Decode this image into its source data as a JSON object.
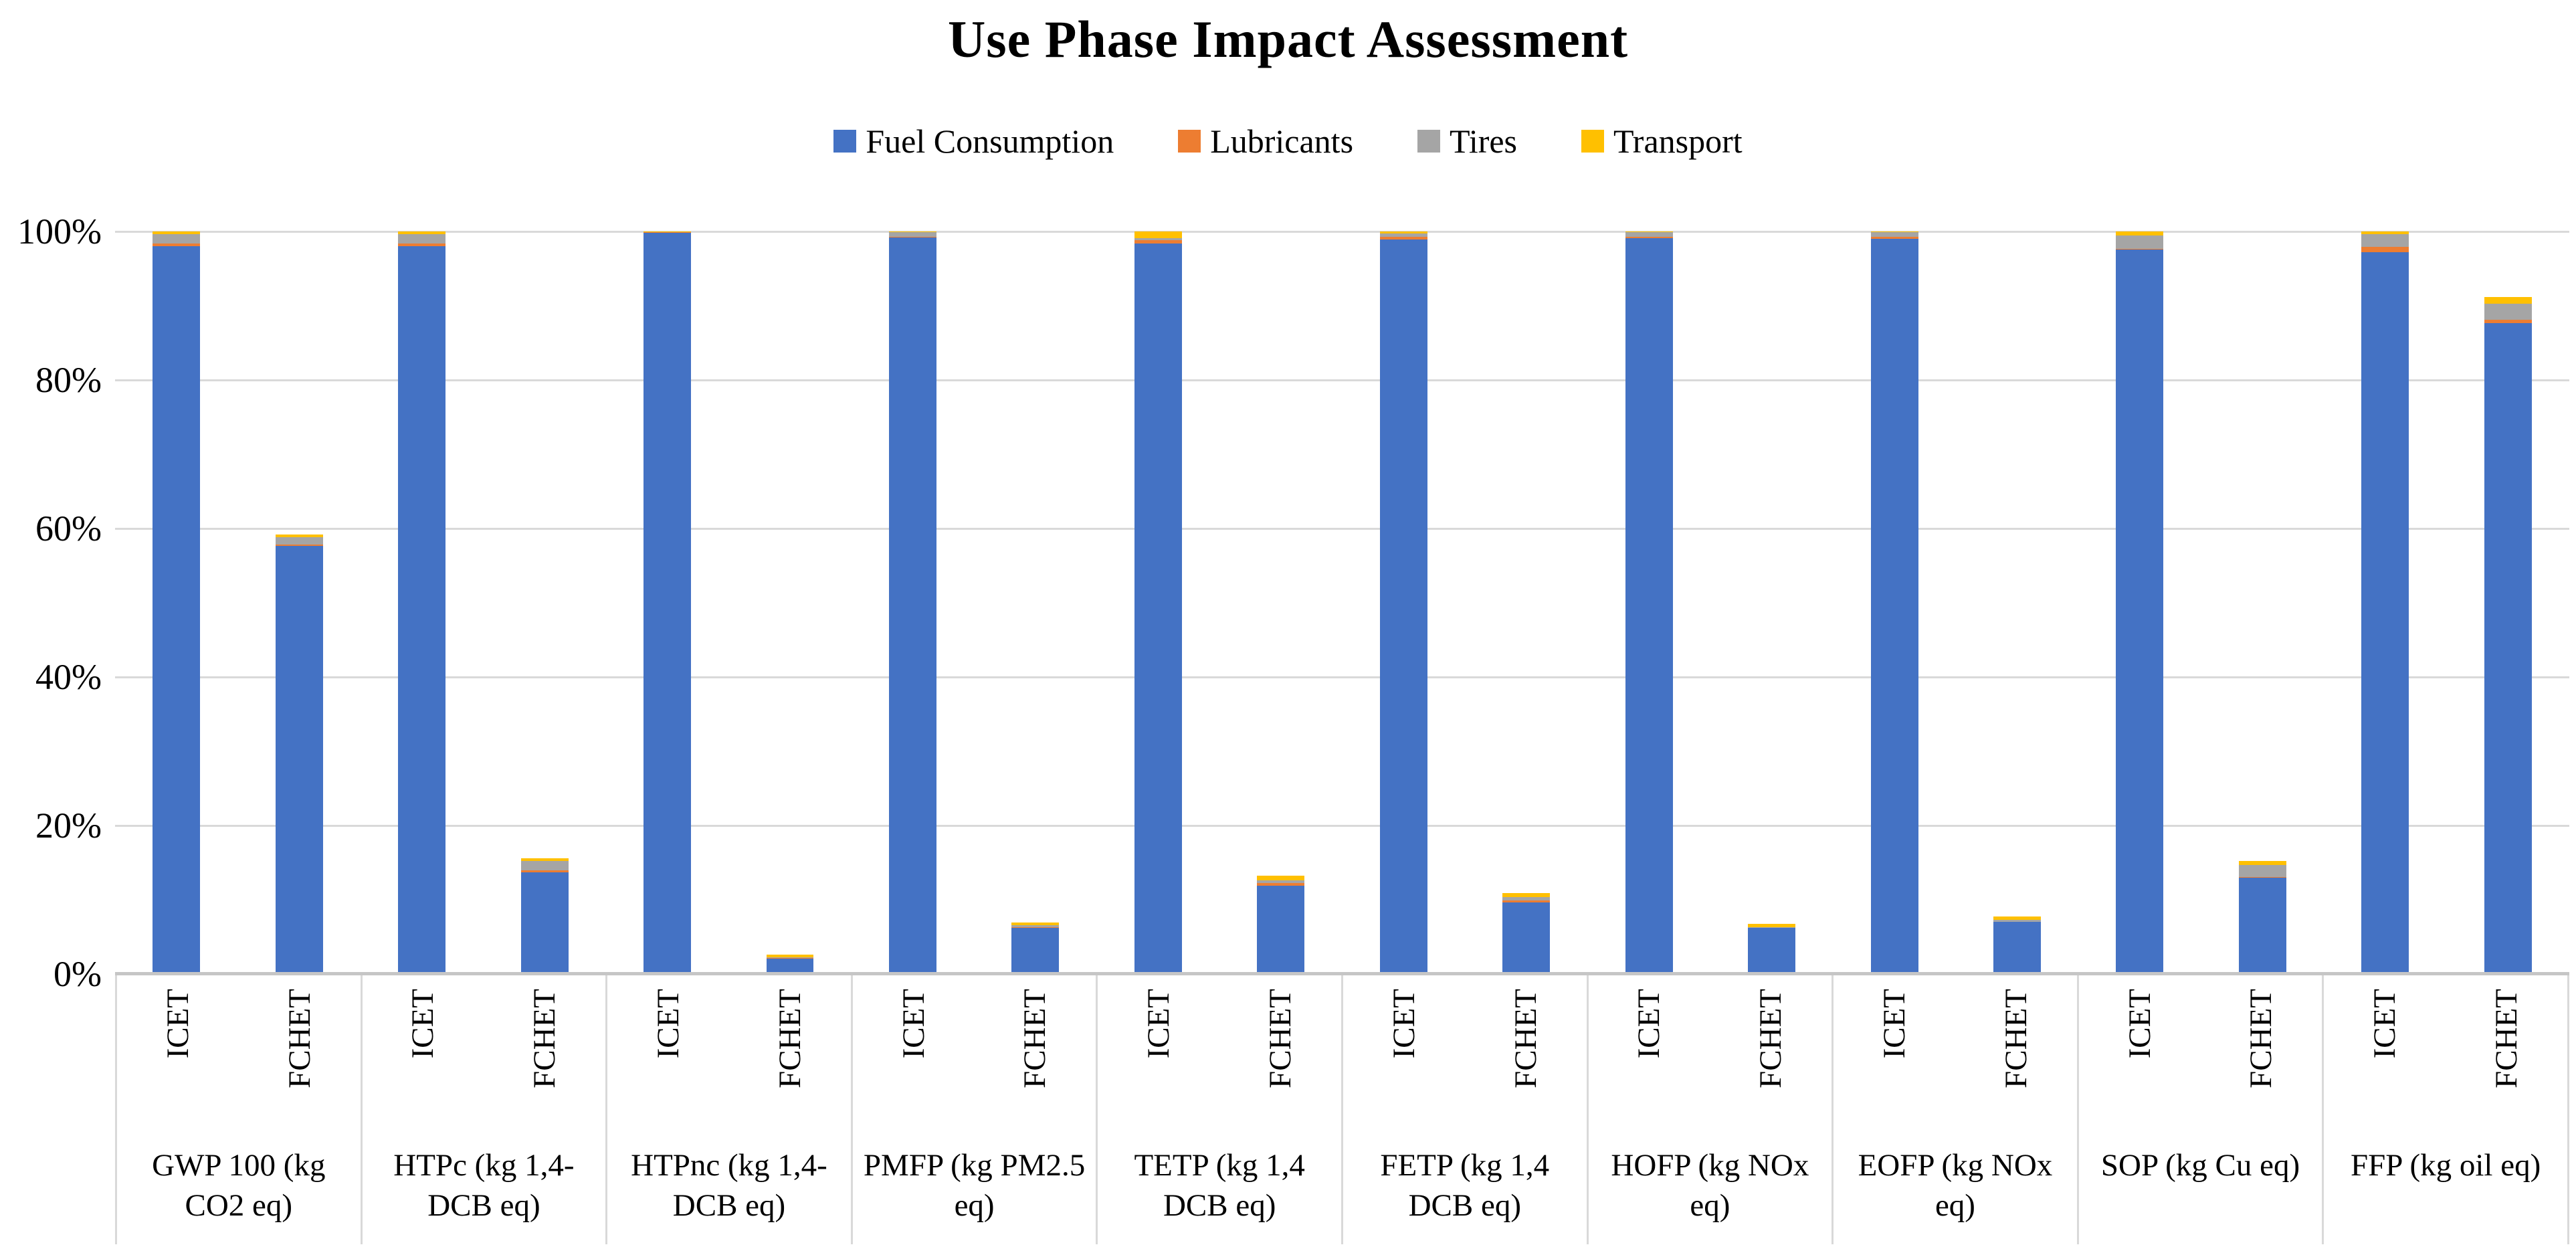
{
  "chart_data": {
    "type": "bar",
    "variant": "stacked-percent-column",
    "title": "Use Phase Impact Assessment",
    "legend_position": "top",
    "grid": true,
    "y_axis": {
      "min": 0,
      "max": 100,
      "tick_labels": [
        "100%",
        "80%",
        "60%",
        "40%",
        "20%",
        "0%"
      ]
    },
    "bar_labels": [
      "ICET",
      "FCHET"
    ],
    "categories": [
      "GWP 100 (kg CO2 eq)",
      "HTPc (kg 1,4-DCB eq)",
      "HTPnc (kg 1,4-DCB eq)",
      "PMFP (kg PM2.5 eq)",
      "TETP (kg 1,4 DCB eq)",
      "FETP (kg 1,4 DCB eq)",
      "HOFP (kg NOx eq)",
      "EOFP (kg NOx eq)",
      "SOP (kg Cu eq)",
      "FFP (kg oil eq)"
    ],
    "series": [
      {
        "name": "Fuel Consumption",
        "color": "#4472C4",
        "values": [
          [
            98.0,
            57.7
          ],
          [
            98.0,
            13.7
          ],
          [
            99.85,
            2.1
          ],
          [
            99.2,
            6.2
          ],
          [
            98.4,
            11.9
          ],
          [
            98.9,
            9.6
          ],
          [
            99.1,
            6.2
          ],
          [
            99.0,
            7.0
          ],
          [
            97.6,
            13.0
          ],
          [
            97.2,
            87.7
          ]
        ]
      },
      {
        "name": "Lubricants",
        "color": "#ED7D31",
        "values": [
          [
            0.4,
            0.1
          ],
          [
            0.35,
            0.3
          ],
          [
            0.05,
            0.05
          ],
          [
            0.1,
            0.1
          ],
          [
            0.4,
            0.35
          ],
          [
            0.35,
            0.3
          ],
          [
            0.2,
            0.05
          ],
          [
            0.3,
            0.05
          ],
          [
            0.1,
            0.1
          ],
          [
            0.7,
            0.45
          ]
        ]
      },
      {
        "name": "Tires",
        "color": "#A5A5A5",
        "values": [
          [
            1.2,
            1.0
          ],
          [
            1.25,
            1.2
          ],
          [
            0.05,
            0.15
          ],
          [
            0.6,
            0.3
          ],
          [
            0.3,
            0.4
          ],
          [
            0.45,
            0.5
          ],
          [
            0.6,
            0.1
          ],
          [
            0.6,
            0.25
          ],
          [
            1.8,
            1.6
          ],
          [
            1.7,
            2.1
          ]
        ]
      },
      {
        "name": "Transport",
        "color": "#FFC000",
        "values": [
          [
            0.4,
            0.4
          ],
          [
            0.4,
            0.4
          ],
          [
            0.05,
            0.3
          ],
          [
            0.1,
            0.35
          ],
          [
            0.9,
            0.6
          ],
          [
            0.3,
            0.5
          ],
          [
            0.1,
            0.4
          ],
          [
            0.1,
            0.45
          ],
          [
            0.5,
            0.5
          ],
          [
            0.4,
            0.9
          ]
        ]
      }
    ]
  },
  "style": {
    "gridline_color": "#D9D9D9",
    "axis_line_color": "#C6C6C6",
    "text_color": "#000000",
    "background": "#FFFFFF"
  }
}
